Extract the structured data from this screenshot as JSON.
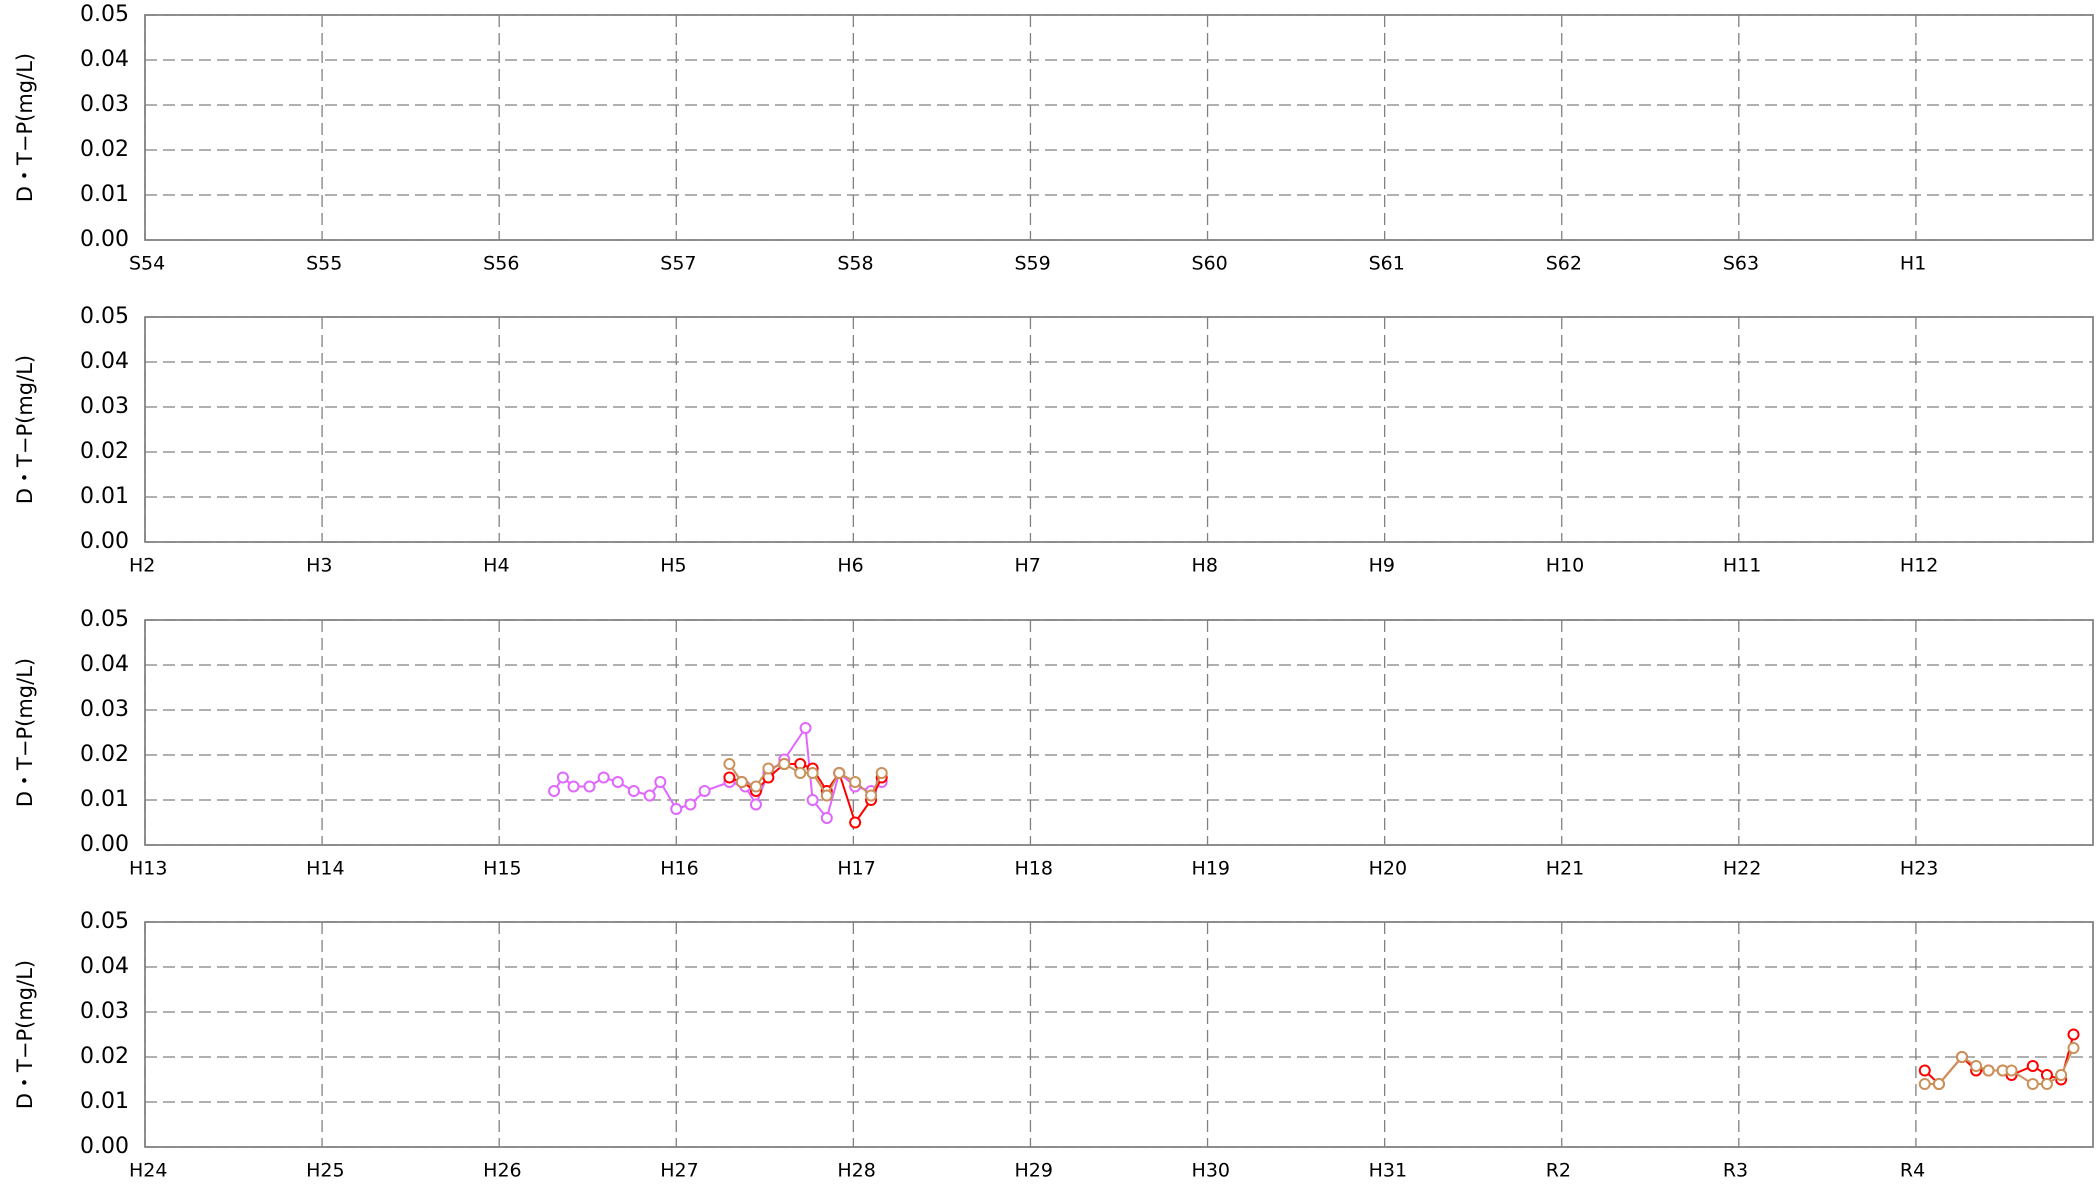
{
  "chart_data": [
    {
      "type": "line",
      "ylabel": "D・T−P(mg/L)",
      "xlim": [
        0,
        11
      ],
      "ylim": [
        0,
        0.05
      ],
      "xticks": [
        {
          "value": 0,
          "label": "S54"
        },
        {
          "value": 1,
          "label": "S55"
        },
        {
          "value": 2,
          "label": "S56"
        },
        {
          "value": 3,
          "label": "S57"
        },
        {
          "value": 4,
          "label": "S58"
        },
        {
          "value": 5,
          "label": "S59"
        },
        {
          "value": 6,
          "label": "S60"
        },
        {
          "value": 7,
          "label": "S61"
        },
        {
          "value": 8,
          "label": "S62"
        },
        {
          "value": 9,
          "label": "S63"
        },
        {
          "value": 10,
          "label": "H1"
        }
      ],
      "yticks": [
        {
          "value": 0,
          "label": "0.00"
        },
        0.01,
        0.02,
        0.03,
        0.04,
        0.05
      ],
      "grid": true,
      "series": []
    },
    {
      "type": "line",
      "ylabel": "D・T−P(mg/L)",
      "xlim": [
        0,
        11
      ],
      "ylim": [
        0,
        0.05
      ],
      "xticks": [
        {
          "value": 0,
          "label": "H2"
        },
        {
          "value": 1,
          "label": "H3"
        },
        {
          "value": 2,
          "label": "H4"
        },
        {
          "value": 3,
          "label": "H5"
        },
        {
          "value": 4,
          "label": "H6"
        },
        {
          "value": 5,
          "label": "H7"
        },
        {
          "value": 6,
          "label": "H8"
        },
        {
          "value": 7,
          "label": "H9"
        },
        {
          "value": 8,
          "label": "H10"
        },
        {
          "value": 9,
          "label": "H11"
        },
        {
          "value": 10,
          "label": "H12"
        }
      ],
      "yticks": [
        {
          "value": 0,
          "label": "0.00"
        },
        0.01,
        0.02,
        0.03,
        0.04,
        0.05
      ],
      "grid": true,
      "series": []
    },
    {
      "type": "line",
      "ylabel": "D・T−P(mg/L)",
      "xlim": [
        0,
        11
      ],
      "ylim": [
        0,
        0.05
      ],
      "xticks": [
        {
          "value": 0,
          "label": "H13"
        },
        {
          "value": 1,
          "label": "H14"
        },
        {
          "value": 2,
          "label": "H15"
        },
        {
          "value": 3,
          "label": "H16"
        },
        {
          "value": 4,
          "label": "H17"
        },
        {
          "value": 5,
          "label": "H18"
        },
        {
          "value": 6,
          "label": "H19"
        },
        {
          "value": 7,
          "label": "H20"
        },
        {
          "value": 8,
          "label": "H21"
        },
        {
          "value": 9,
          "label": "H22"
        },
        {
          "value": 10,
          "label": "H23"
        }
      ],
      "yticks": [
        {
          "value": 0,
          "label": "0.00"
        },
        0.01,
        0.02,
        0.03,
        0.04,
        0.05
      ],
      "grid": true,
      "series": [
        {
          "color": "#e066ff",
          "x": [
            2.31,
            2.36,
            2.42,
            2.51,
            2.59,
            2.67,
            2.76,
            2.85,
            2.91,
            3.0,
            3.08,
            3.16,
            3.3,
            3.39,
            3.45,
            3.52,
            3.61,
            3.73,
            3.77,
            3.85,
            3.92,
            4.01,
            4.1,
            4.16
          ],
          "values": [
            0.012,
            0.015,
            0.013,
            0.013,
            0.015,
            0.014,
            0.012,
            0.011,
            0.014,
            0.008,
            0.009,
            0.012,
            0.014,
            0.013,
            0.009,
            0.016,
            0.019,
            0.026,
            0.01,
            0.006,
            0.016,
            0.013,
            0.012,
            0.014
          ]
        },
        {
          "color": "#ff0000",
          "x": [
            3.3,
            3.37,
            3.45,
            3.52,
            3.61,
            3.7,
            3.77,
            3.85,
            3.92,
            4.01,
            4.1,
            4.16
          ],
          "values": [
            0.015,
            0.014,
            0.012,
            0.015,
            0.018,
            0.018,
            0.017,
            0.012,
            0.016,
            0.005,
            0.01,
            0.015
          ]
        },
        {
          "color": "#c8925a",
          "x": [
            3.3,
            3.37,
            3.45,
            3.52,
            3.61,
            3.7,
            3.77,
            3.85,
            3.92,
            4.01,
            4.1,
            4.16
          ],
          "values": [
            0.018,
            0.014,
            0.013,
            0.017,
            0.018,
            0.016,
            0.016,
            0.011,
            0.016,
            0.014,
            0.011,
            0.016
          ]
        }
      ]
    },
    {
      "type": "line",
      "ylabel": "D・T−P(mg/L)",
      "xlim": [
        0,
        11
      ],
      "ylim": [
        0,
        0.05
      ],
      "xticks": [
        {
          "value": 0,
          "label": "H24"
        },
        {
          "value": 1,
          "label": "H25"
        },
        {
          "value": 2,
          "label": "H26"
        },
        {
          "value": 3,
          "label": "H27"
        },
        {
          "value": 4,
          "label": "H28"
        },
        {
          "value": 5,
          "label": "H29"
        },
        {
          "value": 6,
          "label": "H30"
        },
        {
          "value": 7,
          "label": "H31"
        },
        {
          "value": 8,
          "label": "R2"
        },
        {
          "value": 9,
          "label": "R3"
        },
        {
          "value": 10,
          "label": "R4"
        }
      ],
      "yticks": [
        {
          "value": 0,
          "label": "0.00"
        },
        0.01,
        0.02,
        0.03,
        0.04,
        0.05
      ],
      "grid": true,
      "series": [
        {
          "color": "#ff0000",
          "x": [
            10.05,
            10.13,
            10.26,
            10.34,
            10.41,
            10.49,
            10.54,
            10.66,
            10.74,
            10.82,
            10.89
          ],
          "values": [
            0.017,
            0.014,
            0.02,
            0.017,
            0.017,
            0.017,
            0.016,
            0.018,
            0.016,
            0.015,
            0.025
          ]
        },
        {
          "color": "#c8925a",
          "x": [
            10.05,
            10.13,
            10.26,
            10.34,
            10.41,
            10.49,
            10.54,
            10.66,
            10.74,
            10.82,
            10.89
          ],
          "values": [
            0.014,
            0.014,
            0.02,
            0.018,
            0.017,
            0.017,
            0.017,
            0.014,
            0.014,
            0.016,
            0.022
          ]
        }
      ]
    }
  ]
}
